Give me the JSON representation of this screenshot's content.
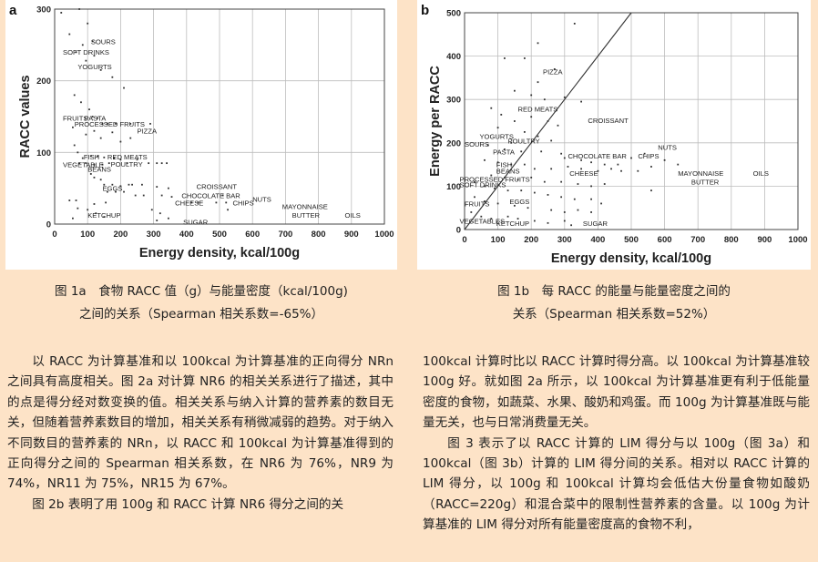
{
  "figure_a": {
    "panel_letter": "a",
    "caption_line1": "图 1a　食物 RACC 值（g）与能量密度（kcal/100g)",
    "caption_line2": "之间的关系（Spearman 相关系数=-65%）",
    "chart_data": {
      "type": "scatter",
      "xlabel": "Energy density, kcal/100g",
      "ylabel": "RACC values",
      "xlim": [
        0,
        1000
      ],
      "ylim": [
        0,
        300
      ],
      "x_ticks": [
        0,
        100,
        200,
        300,
        400,
        500,
        600,
        700,
        800,
        900,
        1000
      ],
      "y_ticks": [
        0,
        100,
        200,
        300
      ],
      "grid": true,
      "labels": [
        {
          "text": "SOURS",
          "x": 110,
          "y": 255
        },
        {
          "text": "SOFT DRINKS",
          "x": 25,
          "y": 240
        },
        {
          "text": "YOGURTS",
          "x": 70,
          "y": 220
        },
        {
          "text": "FRUITS",
          "x": 25,
          "y": 148
        },
        {
          "text": "PASTA",
          "x": 90,
          "y": 148
        },
        {
          "text": "PROCESSED FRUITS",
          "x": 60,
          "y": 140
        },
        {
          "text": "PIZZA",
          "x": 250,
          "y": 130
        },
        {
          "text": "FISH",
          "x": 88,
          "y": 94
        },
        {
          "text": "RED MEATS",
          "x": 160,
          "y": 94
        },
        {
          "text": "VEGETABLE",
          "x": 25,
          "y": 83
        },
        {
          "text": "POULTRY",
          "x": 170,
          "y": 84
        },
        {
          "text": "BEANS",
          "x": 100,
          "y": 77
        },
        {
          "text": "CROISSANT",
          "x": 430,
          "y": 53
        },
        {
          "text": "EGGS",
          "x": 145,
          "y": 50
        },
        {
          "text": "CHOCOLATE BAR",
          "x": 385,
          "y": 40
        },
        {
          "text": "NUTS",
          "x": 600,
          "y": 35
        },
        {
          "text": "CHIPS",
          "x": 540,
          "y": 30
        },
        {
          "text": "CHEESE",
          "x": 365,
          "y": 30
        },
        {
          "text": "MAYONNAISE",
          "x": 690,
          "y": 25
        },
        {
          "text": "BUTTER",
          "x": 720,
          "y": 13
        },
        {
          "text": "KETCHUP",
          "x": 100,
          "y": 13
        },
        {
          "text": "OILS",
          "x": 880,
          "y": 13
        },
        {
          "text": "SUGAR",
          "x": 390,
          "y": 3
        }
      ],
      "points": [
        [
          20,
          295
        ],
        [
          45,
          265
        ],
        [
          75,
          300
        ],
        [
          100,
          280
        ],
        [
          115,
          255
        ],
        [
          85,
          250
        ],
        [
          65,
          240
        ],
        [
          120,
          235
        ],
        [
          95,
          228
        ],
        [
          140,
          215
        ],
        [
          175,
          205
        ],
        [
          210,
          190
        ],
        [
          60,
          180
        ],
        [
          80,
          170
        ],
        [
          105,
          160
        ],
        [
          115,
          150
        ],
        [
          130,
          148
        ],
        [
          145,
          140
        ],
        [
          160,
          140
        ],
        [
          185,
          140
        ],
        [
          230,
          140
        ],
        [
          290,
          140
        ],
        [
          55,
          135
        ],
        [
          95,
          125
        ],
        [
          120,
          130
        ],
        [
          140,
          120
        ],
        [
          175,
          128
        ],
        [
          200,
          115
        ],
        [
          230,
          120
        ],
        [
          60,
          110
        ],
        [
          70,
          100
        ],
        [
          85,
          92
        ],
        [
          110,
          95
        ],
        [
          130,
          95
        ],
        [
          150,
          93
        ],
        [
          180,
          92
        ],
        [
          200,
          90
        ],
        [
          250,
          90
        ],
        [
          75,
          85
        ],
        [
          95,
          85
        ],
        [
          120,
          83
        ],
        [
          145,
          83
        ],
        [
          165,
          85
        ],
        [
          220,
          85
        ],
        [
          285,
          85
        ],
        [
          310,
          85
        ],
        [
          325,
          85
        ],
        [
          340,
          85
        ],
        [
          110,
          70
        ],
        [
          120,
          65
        ],
        [
          140,
          62
        ],
        [
          150,
          55
        ],
        [
          175,
          55
        ],
        [
          200,
          53
        ],
        [
          225,
          55
        ],
        [
          235,
          55
        ],
        [
          265,
          55
        ],
        [
          310,
          52
        ],
        [
          345,
          50
        ],
        [
          160,
          45
        ],
        [
          185,
          45
        ],
        [
          210,
          45
        ],
        [
          245,
          40
        ],
        [
          270,
          40
        ],
        [
          325,
          40
        ],
        [
          355,
          38
        ],
        [
          415,
          30
        ],
        [
          435,
          30
        ],
        [
          490,
          30
        ],
        [
          520,
          30
        ],
        [
          510,
          40
        ],
        [
          45,
          33
        ],
        [
          65,
          33
        ],
        [
          120,
          28
        ],
        [
          155,
          30
        ],
        [
          70,
          22
        ],
        [
          100,
          20
        ],
        [
          125,
          15
        ],
        [
          150,
          10
        ],
        [
          295,
          20
        ],
        [
          320,
          15
        ],
        [
          345,
          8
        ],
        [
          55,
          8
        ],
        [
          310,
          5
        ],
        [
          525,
          20
        ]
      ]
    }
  },
  "figure_b": {
    "panel_letter": "b",
    "caption_line1": "图 1b　每 RACC 的能量与能量密度之间的",
    "caption_line2": "关系（Spearman 相关系数=52%）",
    "chart_data": {
      "type": "scatter",
      "xlabel": "Energy density, kcal/100g",
      "ylabel": "Energy per RACC",
      "xlim": [
        0,
        1000
      ],
      "ylim": [
        0,
        500
      ],
      "x_ticks": [
        0,
        100,
        200,
        300,
        400,
        500,
        600,
        700,
        800,
        900,
        1000
      ],
      "y_ticks": [
        0,
        100,
        200,
        300,
        400,
        500
      ],
      "grid": true,
      "reference_line": [
        [
          0,
          0
        ],
        [
          500,
          500
        ]
      ],
      "labels": [
        {
          "text": "PIZZA",
          "x": 235,
          "y": 365
        },
        {
          "text": "RED MEATS",
          "x": 160,
          "y": 278
        },
        {
          "text": "CROISSANT",
          "x": 370,
          "y": 252
        },
        {
          "text": "YOGURTS",
          "x": 45,
          "y": 215
        },
        {
          "text": "SOURS",
          "x": 0,
          "y": 198
        },
        {
          "text": "POULTRY",
          "x": 130,
          "y": 205
        },
        {
          "text": "PASTA",
          "x": 85,
          "y": 180
        },
        {
          "text": "NUTS",
          "x": 580,
          "y": 190
        },
        {
          "text": "CHOCOLATE BAR",
          "x": 310,
          "y": 170
        },
        {
          "text": "CHIPS",
          "x": 520,
          "y": 170
        },
        {
          "text": "FISH",
          "x": 95,
          "y": 150
        },
        {
          "text": "BEANS",
          "x": 95,
          "y": 135
        },
        {
          "text": "CHEESE",
          "x": 315,
          "y": 130
        },
        {
          "text": "MAYONNAISE",
          "x": 640,
          "y": 130
        },
        {
          "text": "OILS",
          "x": 865,
          "y": 130
        },
        {
          "text": "PROCESSED FRUITS",
          "x": -15,
          "y": 117
        },
        {
          "text": "SOFT DRINKS",
          "x": -15,
          "y": 104
        },
        {
          "text": "BUTTER",
          "x": 680,
          "y": 110
        },
        {
          "text": "EGGS",
          "x": 135,
          "y": 65
        },
        {
          "text": "FRUITS",
          "x": 0,
          "y": 60
        },
        {
          "text": "VEGETABLES",
          "x": -15,
          "y": 20
        },
        {
          "text": "KETCHUP",
          "x": 95,
          "y": 15
        },
        {
          "text": "SUGAR",
          "x": 355,
          "y": 15
        }
      ],
      "points": [
        [
          330,
          475
        ],
        [
          220,
          430
        ],
        [
          180,
          395
        ],
        [
          120,
          395
        ],
        [
          270,
          370
        ],
        [
          220,
          340
        ],
        [
          150,
          320
        ],
        [
          200,
          310
        ],
        [
          240,
          300
        ],
        [
          300,
          305
        ],
        [
          350,
          295
        ],
        [
          80,
          280
        ],
        [
          110,
          265
        ],
        [
          150,
          250
        ],
        [
          200,
          260
        ],
        [
          250,
          250
        ],
        [
          280,
          240
        ],
        [
          100,
          235
        ],
        [
          180,
          225
        ],
        [
          220,
          215
        ],
        [
          260,
          205
        ],
        [
          140,
          200
        ],
        [
          70,
          195
        ],
        [
          120,
          185
        ],
        [
          170,
          180
        ],
        [
          230,
          180
        ],
        [
          290,
          175
        ],
        [
          300,
          165
        ],
        [
          350,
          160
        ],
        [
          380,
          155
        ],
        [
          420,
          150
        ],
        [
          460,
          150
        ],
        [
          500,
          165
        ],
        [
          540,
          175
        ],
        [
          600,
          160
        ],
        [
          640,
          150
        ],
        [
          60,
          160
        ],
        [
          100,
          155
        ],
        [
          140,
          150
        ],
        [
          180,
          150
        ],
        [
          210,
          140
        ],
        [
          260,
          140
        ],
        [
          310,
          145
        ],
        [
          350,
          140
        ],
        [
          400,
          135
        ],
        [
          440,
          140
        ],
        [
          470,
          135
        ],
        [
          520,
          135
        ],
        [
          560,
          145
        ],
        [
          80,
          125
        ],
        [
          120,
          120
        ],
        [
          160,
          115
        ],
        [
          200,
          120
        ],
        [
          240,
          110
        ],
        [
          290,
          110
        ],
        [
          340,
          105
        ],
        [
          380,
          100
        ],
        [
          420,
          105
        ],
        [
          30,
          110
        ],
        [
          60,
          100
        ],
        [
          90,
          95
        ],
        [
          130,
          90
        ],
        [
          170,
          90
        ],
        [
          210,
          85
        ],
        [
          250,
          80
        ],
        [
          290,
          75
        ],
        [
          330,
          70
        ],
        [
          380,
          70
        ],
        [
          30,
          75
        ],
        [
          60,
          65
        ],
        [
          100,
          60
        ],
        [
          150,
          55
        ],
        [
          190,
          50
        ],
        [
          260,
          45
        ],
        [
          300,
          40
        ],
        [
          340,
          45
        ],
        [
          380,
          40
        ],
        [
          410,
          60
        ],
        [
          20,
          40
        ],
        [
          50,
          30
        ],
        [
          80,
          25
        ],
        [
          130,
          30
        ],
        [
          160,
          25
        ],
        [
          210,
          20
        ],
        [
          250,
          15
        ],
        [
          300,
          20
        ],
        [
          560,
          90
        ],
        [
          320,
          10
        ]
      ]
    }
  },
  "body": {
    "left": [
      "以 RACC 为计算基准和以 100kcal 为计算基准的正向得分 NRn 之间具有高度相关。图 2a 对计算 NR6 的相关关系进行了描述，其中的点是得分经对数变换的值。相关关系与纳入计算的营养素的数目无关，但随着营养素数目的增加，相关关系有稍微减弱的趋势。对于纳入不同数目的营养素的 NRn，以 RACC 和 100kcal 为计算基准得到的正向得分之间的 Spearman 相关系数，在 NR6 为 76%，NR9 为 74%，NR11 为 75%，NR15 为 67%。",
      "图 2b 表明了用 100g 和 RACC 计算 NR6 得分之间的关"
    ],
    "right": [
      "100kcal 计算时比以 RACC 计算时得分高。以 100kcal 为计算基准较 100g 好。就如图 2a 所示，以 100kcal 为计算基准更有利于低能量密度的食物，如蔬菜、水果、酸奶和鸡蛋。而 100g 为计算基准既与能量无关，也与日常消费量无关。",
      "图 3 表示了以 RACC 计算的 LIM 得分与以 100g（图 3a）和 100kcal（图 3b）计算的 LIM 得分间的关系。相对以 RACC 计算的 LIM 得分，以 100g 和 100kcal 计算均会低估大份量食物如酸奶（RACC=220g）和混合菜中的限制性营养素的含量。以 100g 为计算基准的 LIM 得分对所有能量密度高的食物不利，"
    ]
  }
}
